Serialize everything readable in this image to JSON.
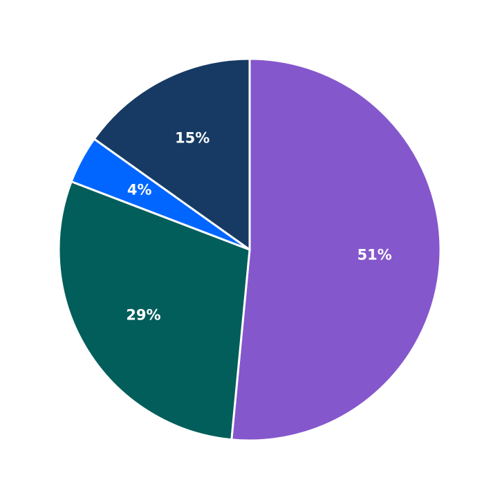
{
  "chart_data": {
    "type": "pie",
    "values": [
      51,
      29,
      4,
      15
    ],
    "value_labels": [
      "51%",
      "29%",
      "4%",
      "15%"
    ],
    "colors": [
      "#8557cc",
      "#025e5b",
      "#0066ff",
      "#163a63"
    ]
  }
}
